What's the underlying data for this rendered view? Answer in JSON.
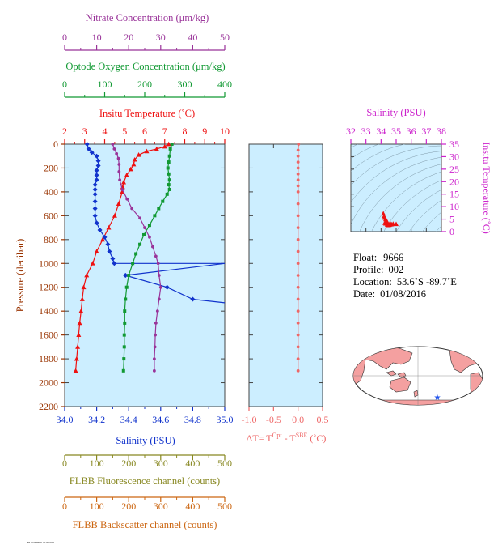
{
  "chart_data": [
    {
      "type": "line",
      "panel": "main-profile",
      "y_axis": {
        "label": "Pressure (decibar)",
        "ticks": [
          "0",
          "200",
          "400",
          "600",
          "800",
          "1000",
          "1200",
          "1400",
          "1600",
          "1800",
          "2000",
          "2200"
        ],
        "range": [
          0,
          2200
        ],
        "inverted": true
      },
      "top_axes": [
        {
          "id": "nitrate",
          "label": "Nitrate Concentration (μm/kg)",
          "ticks": [
            "0",
            "10",
            "20",
            "30",
            "40",
            "50"
          ],
          "range": [
            0,
            50
          ],
          "color": "#993399"
        },
        {
          "id": "oxygen",
          "label": "Optode Oxygen Concentration (μm/kg)",
          "ticks": [
            "0",
            "100",
            "200",
            "300",
            "400"
          ],
          "range": [
            0,
            400
          ],
          "color": "#119933"
        },
        {
          "id": "temp",
          "label": "Insitu Temperature (˚C)",
          "ticks": [
            "2",
            "3",
            "4",
            "5",
            "6",
            "7",
            "8",
            "9",
            "10"
          ],
          "range": [
            2,
            10
          ],
          "color": "#ee1111"
        }
      ],
      "bottom_axes": [
        {
          "id": "salinity",
          "label": "Salinity (PSU)",
          "ticks": [
            "34.0",
            "34.2",
            "34.4",
            "34.6",
            "34.8",
            "35.0"
          ],
          "range": [
            34.0,
            35.0
          ],
          "color": "#1133cc"
        },
        {
          "id": "fluor",
          "label": "FLBB Fluorescence channel (counts)",
          "ticks": [
            "0",
            "100",
            "200",
            "300",
            "400",
            "500"
          ],
          "range": [
            0,
            500
          ],
          "color": "#888822"
        },
        {
          "id": "backscatter",
          "label": "FLBB Backscatter channel (counts)",
          "ticks": [
            "0",
            "100",
            "200",
            "300",
            "400",
            "500"
          ],
          "range": [
            0,
            500
          ],
          "color": "#cc6611"
        }
      ],
      "series": [
        {
          "axis": "temp",
          "color": "#ee1111",
          "marker": "triangle",
          "points": [
            [
              7.2,
              0
            ],
            [
              7.0,
              20
            ],
            [
              6.6,
              40
            ],
            [
              6.1,
              60
            ],
            [
              5.7,
              90
            ],
            [
              5.5,
              130
            ],
            [
              5.45,
              170
            ],
            [
              5.3,
              210
            ],
            [
              5.1,
              260
            ],
            [
              4.95,
              320
            ],
            [
              4.9,
              360
            ],
            [
              4.88,
              400
            ],
            [
              4.7,
              500
            ],
            [
              4.5,
              600
            ],
            [
              4.2,
              700
            ],
            [
              3.9,
              800
            ],
            [
              3.6,
              900
            ],
            [
              3.4,
              1000
            ],
            [
              3.1,
              1100
            ],
            [
              2.95,
              1200
            ],
            [
              2.88,
              1300
            ],
            [
              2.82,
              1400
            ],
            [
              2.75,
              1500
            ],
            [
              2.7,
              1600
            ],
            [
              2.65,
              1700
            ],
            [
              2.6,
              1800
            ],
            [
              2.55,
              1900
            ]
          ]
        },
        {
          "axis": "salinity",
          "color": "#1133cc",
          "marker": "diamond",
          "points": [
            [
              34.14,
              0
            ],
            [
              34.15,
              40
            ],
            [
              34.17,
              70
            ],
            [
              34.2,
              100
            ],
            [
              34.21,
              140
            ],
            [
              34.21,
              180
            ],
            [
              34.2,
              220
            ],
            [
              34.2,
              260
            ],
            [
              34.2,
              300
            ],
            [
              34.19,
              340
            ],
            [
              34.19,
              380
            ],
            [
              34.19,
              420
            ],
            [
              34.19,
              480
            ],
            [
              34.19,
              540
            ],
            [
              34.19,
              600
            ],
            [
              34.2,
              660
            ],
            [
              34.22,
              720
            ],
            [
              34.25,
              780
            ],
            [
              34.27,
              840
            ],
            [
              34.28,
              900
            ],
            [
              34.3,
              960
            ],
            [
              34.31,
              1000
            ],
            [
              35.0,
              1000
            ],
            [
              34.38,
              1100
            ],
            [
              35.0,
              1000
            ],
            [
              34.38,
              1100
            ],
            [
              34.64,
              1200
            ],
            [
              34.8,
              1300
            ],
            [
              35.0,
              1330
            ]
          ]
        },
        {
          "axis": "oxygen",
          "color": "#119933",
          "marker": "square",
          "points": [
            [
              268,
              0
            ],
            [
              264,
              40
            ],
            [
              262,
              100
            ],
            [
              260,
              150
            ],
            [
              258,
              200
            ],
            [
              260,
              250
            ],
            [
              262,
              300
            ],
            [
              260,
              340
            ],
            [
              262,
              380
            ],
            [
              256,
              420
            ],
            [
              245,
              480
            ],
            [
              235,
              540
            ],
            [
              225,
              600
            ],
            [
              212,
              680
            ],
            [
              198,
              760
            ],
            [
              188,
              840
            ],
            [
              178,
              920
            ],
            [
              170,
              1000
            ],
            [
              160,
              1100
            ],
            [
              155,
              1200
            ],
            [
              152,
              1300
            ],
            [
              150,
              1400
            ],
            [
              150,
              1500
            ],
            [
              149,
              1600
            ],
            [
              149,
              1700
            ],
            [
              148,
              1800
            ],
            [
              147,
              1900
            ]
          ]
        },
        {
          "axis": "nitrate",
          "color": "#993399",
          "marker": "circle",
          "points": [
            [
              15.0,
              0
            ],
            [
              15.5,
              40
            ],
            [
              16.2,
              80
            ],
            [
              16.8,
              120
            ],
            [
              17.0,
              170
            ],
            [
              17.0,
              230
            ],
            [
              17.2,
              300
            ],
            [
              18.0,
              380
            ],
            [
              19.5,
              460
            ],
            [
              21.0,
              540
            ],
            [
              23.5,
              620
            ],
            [
              25.0,
              700
            ],
            [
              26.5,
              780
            ],
            [
              27.5,
              860
            ],
            [
              28.5,
              940
            ],
            [
              29.2,
              1000
            ],
            [
              29.5,
              1100
            ],
            [
              30.0,
              1200
            ],
            [
              29.5,
              1300
            ],
            [
              29.0,
              1400
            ],
            [
              28.5,
              1500
            ],
            [
              28.3,
              1600
            ],
            [
              28.2,
              1700
            ],
            [
              28.0,
              1800
            ],
            [
              28.0,
              1900
            ]
          ]
        }
      ]
    },
    {
      "type": "line",
      "panel": "delta-t",
      "x_axis": {
        "label_main": "ΔT= T",
        "label_sup1": "Opt",
        "label_mid": " - T",
        "label_sup2": "SBE",
        "label_end": " (˚C)",
        "ticks": [
          "-1.0",
          "-0.5",
          "0.0",
          "0.5"
        ],
        "range": [
          -1.0,
          0.5
        ],
        "color": "#ee6666"
      },
      "y_range": [
        0,
        2200
      ],
      "series": [
        {
          "color": "#ee6666",
          "marker": "circle",
          "points": [
            [
              0.01,
              0
            ],
            [
              0.0,
              50
            ],
            [
              0.0,
              100
            ],
            [
              0.0,
              150
            ],
            [
              0.0,
              200
            ],
            [
              0.0,
              250
            ],
            [
              0.0,
              300
            ],
            [
              0.0,
              350
            ],
            [
              0.0,
              400
            ],
            [
              0.0,
              500
            ],
            [
              0.0,
              600
            ],
            [
              0.0,
              700
            ],
            [
              0.0,
              800
            ],
            [
              0.0,
              900
            ],
            [
              0.0,
              1000
            ],
            [
              0.0,
              1100
            ],
            [
              0.0,
              1200
            ],
            [
              0.0,
              1300
            ],
            [
              0.0,
              1400
            ],
            [
              0.0,
              1500
            ],
            [
              0.0,
              1600
            ],
            [
              0.0,
              1700
            ],
            [
              0.0,
              1800
            ],
            [
              0.0,
              1900
            ]
          ]
        }
      ]
    },
    {
      "type": "scatter",
      "panel": "ts-diagram",
      "title": "Salinity (PSU)",
      "x_axis": {
        "ticks": [
          "32",
          "33",
          "34",
          "35",
          "36",
          "37",
          "38"
        ],
        "range": [
          32,
          38
        ],
        "color": "#cc22cc"
      },
      "y_axis": {
        "label": "Insitu Temperature (˚C)",
        "ticks": [
          "0",
          "5",
          "10",
          "15",
          "20",
          "25",
          "30",
          "35"
        ],
        "range": [
          0,
          35
        ],
        "color": "#cc22cc"
      },
      "series": [
        {
          "color": "#ee1111",
          "marker": "triangle",
          "points": [
            [
              34.15,
              7.2
            ],
            [
              34.2,
              6.1
            ],
            [
              34.25,
              5.5
            ],
            [
              34.3,
              4.9
            ],
            [
              34.35,
              4.5
            ],
            [
              34.4,
              3.9
            ],
            [
              34.6,
              3.4
            ],
            [
              34.8,
              3.1
            ],
            [
              35.0,
              3.0
            ],
            [
              34.7,
              2.9
            ],
            [
              34.6,
              2.8
            ],
            [
              34.55,
              2.7
            ],
            [
              34.5,
              2.6
            ],
            [
              34.45,
              2.55
            ],
            [
              34.4,
              2.8
            ],
            [
              34.3,
              3.2
            ],
            [
              34.25,
              3.5
            ]
          ]
        }
      ]
    }
  ],
  "info": {
    "float_label": "Float:",
    "float_value": "9666",
    "profile_label": "Profile:",
    "profile_value": "002",
    "location_label": "Location:",
    "location_value": "53.6˚S  -89.7˚E",
    "date_label": "Date:",
    "date_value": "01/08/2016"
  },
  "map": {
    "marker_color": "#2255ee",
    "land_color": "#f4a0a0",
    "ocean_color": "#ffffff"
  },
  "footer_tiny": "FLOAT9666 20160108"
}
